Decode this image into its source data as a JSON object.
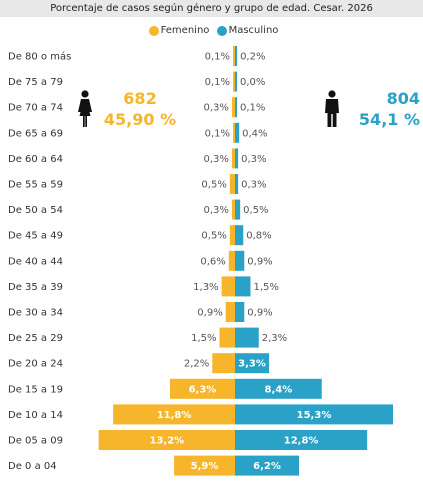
{
  "header": {
    "title": "Porcentaje de casos según género y grupo de edad. Cesar. 2026"
  },
  "legend": {
    "female": {
      "label": "Femenino",
      "color": "#f6b52b"
    },
    "male": {
      "label": "Masculino",
      "color": "#2aa1c7"
    }
  },
  "summary": {
    "female": {
      "count": "682",
      "percent": "45,90 %",
      "icon": "female-person-icon"
    },
    "male": {
      "count": "804",
      "percent": "54,1 %",
      "icon": "male-person-icon"
    }
  },
  "chart_data": {
    "type": "bar",
    "orientation": "horizontal-pyramid",
    "title": "Porcentaje de casos según género y grupo de edad. Cesar. 2026",
    "categories": [
      "De 80 o más",
      "De 75 a 79",
      "De 70 a 74",
      "De 65 a 69",
      "De 60 a 64",
      "De 55 a 59",
      "De 50 a 54",
      "De 45 a 49",
      "De 40 a 44",
      "De 35 a 39",
      "De 30 a 34",
      "De 25 a 29",
      "De 20 a 24",
      "De 15 a 19",
      "De 10 a 14",
      "De 05 a 09",
      "De 0 a 04"
    ],
    "series": [
      {
        "name": "Femenino",
        "color": "#f6b52b",
        "values": [
          0.1,
          0.1,
          0.3,
          0.1,
          0.3,
          0.5,
          0.3,
          0.5,
          0.6,
          1.3,
          0.9,
          1.5,
          2.2,
          6.3,
          11.8,
          13.2,
          5.9
        ],
        "labels": [
          "0,1%",
          "0,1%",
          "0,3%",
          "0,1%",
          "0,3%",
          "0,5%",
          "0,3%",
          "0,5%",
          "0,6%",
          "1,3%",
          "0,9%",
          "1,5%",
          "2,2%",
          "6,3%",
          "11,8%",
          "13,2%",
          "5,9%"
        ]
      },
      {
        "name": "Masculino",
        "color": "#2aa1c7",
        "values": [
          0.2,
          0.0,
          0.1,
          0.4,
          0.3,
          0.3,
          0.5,
          0.8,
          0.9,
          1.5,
          0.9,
          2.3,
          3.3,
          8.4,
          15.3,
          12.8,
          6.2
        ],
        "labels": [
          "0,2%",
          "0,0%",
          "0,1%",
          "0,4%",
          "0,3%",
          "0,3%",
          "0,5%",
          "0,8%",
          "0,9%",
          "1,5%",
          "0,9%",
          "2,3%",
          "3,3%",
          "8,4%",
          "15,3%",
          "12,8%",
          "6,2%"
        ]
      }
    ],
    "xlim": [
      0,
      15.3
    ],
    "legend": "top-center",
    "grid": false
  }
}
